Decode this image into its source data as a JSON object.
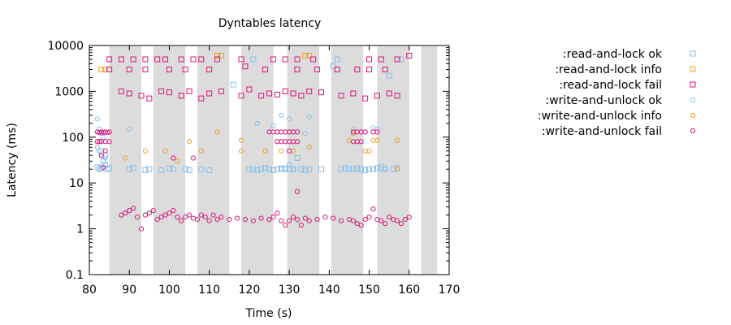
{
  "chart_data": {
    "type": "scatter",
    "title": "Dyntables latency",
    "xlabel": "Time (s)",
    "ylabel": "Latency (ms)",
    "xlim": [
      80,
      170
    ],
    "ylim": [
      0.1,
      10000
    ],
    "yscale": "log",
    "xticks": [
      80,
      90,
      100,
      110,
      120,
      130,
      140,
      150,
      160,
      170
    ],
    "yticks": [
      0.1,
      1,
      10,
      100,
      1000,
      10000
    ],
    "ytick_labels": [
      "0.1",
      "1",
      "10",
      "100",
      "1000",
      "10000"
    ],
    "grid": false,
    "legend_position": "right",
    "shaded_intervals": [
      [
        85,
        93
      ],
      [
        96,
        104
      ],
      [
        107,
        115
      ],
      [
        118,
        126
      ],
      [
        129.5,
        137.5
      ],
      [
        140.5,
        148.5
      ],
      [
        152,
        160
      ],
      [
        163,
        167
      ]
    ],
    "series": [
      {
        "name": ":read-and-lock ok",
        "marker": "square",
        "color": "#88c2ee",
        "points": [
          [
            82,
            22
          ],
          [
            82.5,
            20
          ],
          [
            83,
            21
          ],
          [
            83.5,
            30
          ],
          [
            84,
            25
          ],
          [
            84.5,
            20
          ],
          [
            85,
            21
          ],
          [
            83,
            50
          ],
          [
            84,
            40
          ],
          [
            90,
            20
          ],
          [
            91,
            21
          ],
          [
            94,
            19
          ],
          [
            95,
            20
          ],
          [
            98,
            19
          ],
          [
            100,
            21
          ],
          [
            101,
            20
          ],
          [
            104,
            20
          ],
          [
            105,
            19
          ],
          [
            108,
            20
          ],
          [
            110,
            19
          ],
          [
            113,
            6000
          ],
          [
            116,
            1400
          ],
          [
            118,
            5000
          ],
          [
            121,
            5000
          ],
          [
            120,
            20
          ],
          [
            121,
            20
          ],
          [
            122,
            19
          ],
          [
            123,
            20
          ],
          [
            124,
            21
          ],
          [
            125,
            20
          ],
          [
            126,
            19
          ],
          [
            127,
            20
          ],
          [
            128,
            21
          ],
          [
            129,
            20
          ],
          [
            130,
            20
          ],
          [
            131,
            20
          ],
          [
            132,
            35
          ],
          [
            133,
            20
          ],
          [
            134,
            19
          ],
          [
            135,
            20
          ],
          [
            138,
            20
          ],
          [
            141,
            3500
          ],
          [
            142,
            5000
          ],
          [
            143,
            20
          ],
          [
            144,
            21
          ],
          [
            145,
            20
          ],
          [
            146,
            20
          ],
          [
            147,
            21
          ],
          [
            148,
            20
          ],
          [
            149,
            19
          ],
          [
            150,
            20
          ],
          [
            151,
            20
          ],
          [
            152,
            21
          ],
          [
            153,
            22
          ],
          [
            154,
            20
          ],
          [
            155,
            2200
          ],
          [
            156,
            20
          ],
          [
            157,
            21
          ],
          [
            158,
            5000
          ]
        ]
      },
      {
        "name": ":read-and-lock info",
        "marker": "square",
        "color": "#f0a020",
        "points": [
          [
            83,
            3000
          ],
          [
            84,
            3000
          ],
          [
            112,
            6000
          ],
          [
            113,
            6000
          ],
          [
            134,
            6000
          ],
          [
            135,
            6000
          ]
        ]
      },
      {
        "name": ":read-and-lock fail",
        "marker": "square",
        "color": "#e0157d",
        "points": [
          [
            85,
            5000
          ],
          [
            88,
            5000
          ],
          [
            91,
            5000
          ],
          [
            94,
            5000
          ],
          [
            97,
            5000
          ],
          [
            99,
            5000
          ],
          [
            103,
            5000
          ],
          [
            106,
            5000
          ],
          [
            108,
            5000
          ],
          [
            112,
            5000
          ],
          [
            118,
            5000
          ],
          [
            126,
            5000
          ],
          [
            129,
            5000
          ],
          [
            132,
            5000
          ],
          [
            136,
            5000
          ],
          [
            150,
            5000
          ],
          [
            153,
            5000
          ],
          [
            157,
            5000
          ],
          [
            160,
            6000
          ],
          [
            85,
            3000
          ],
          [
            90,
            3000
          ],
          [
            94,
            3000
          ],
          [
            100,
            3000
          ],
          [
            104,
            3000
          ],
          [
            110,
            3000
          ],
          [
            119,
            3500
          ],
          [
            124,
            3000
          ],
          [
            132,
            3000
          ],
          [
            137,
            3000
          ],
          [
            142,
            3000
          ],
          [
            147,
            3000
          ],
          [
            150,
            3000
          ],
          [
            154,
            3000
          ],
          [
            88,
            1000
          ],
          [
            90,
            900
          ],
          [
            93,
            800
          ],
          [
            95,
            700
          ],
          [
            98,
            1000
          ],
          [
            100,
            950
          ],
          [
            103,
            800
          ],
          [
            105,
            1000
          ],
          [
            108,
            700
          ],
          [
            110,
            900
          ],
          [
            113,
            1000
          ],
          [
            118,
            800
          ],
          [
            120,
            1100
          ],
          [
            123,
            800
          ],
          [
            125,
            900
          ],
          [
            127,
            850
          ],
          [
            129,
            1000
          ],
          [
            131,
            900
          ],
          [
            133,
            800
          ],
          [
            135,
            1000
          ],
          [
            138,
            950
          ],
          [
            143,
            800
          ],
          [
            146,
            900
          ],
          [
            149,
            700
          ],
          [
            152,
            800
          ],
          [
            155,
            900
          ],
          [
            157,
            800
          ]
        ]
      },
      {
        "name": ":write-and-unlock ok",
        "marker": "circle",
        "color": "#88c2ee",
        "points": [
          [
            82,
            250
          ],
          [
            82.5,
            150
          ],
          [
            83,
            120
          ],
          [
            83.5,
            100
          ],
          [
            84,
            80
          ],
          [
            82,
            60
          ],
          [
            82.5,
            50
          ],
          [
            83,
            40
          ],
          [
            84,
            35
          ],
          [
            90,
            150
          ],
          [
            122,
            200
          ],
          [
            126,
            180
          ],
          [
            128,
            300
          ],
          [
            130,
            250
          ],
          [
            131,
            20
          ],
          [
            132,
            130
          ],
          [
            134,
            120
          ],
          [
            135,
            280
          ],
          [
            128,
            20
          ],
          [
            129,
            21
          ],
          [
            130,
            25
          ],
          [
            146,
            150
          ],
          [
            151,
            160
          ],
          [
            152,
            150
          ],
          [
            153,
            20
          ],
          [
            154,
            21
          ]
        ]
      },
      {
        "name": ":write-and-unlock info",
        "marker": "circle",
        "color": "#f0a020",
        "points": [
          [
            89,
            35
          ],
          [
            94,
            50
          ],
          [
            99,
            50
          ],
          [
            102,
            30
          ],
          [
            105,
            80
          ],
          [
            108,
            50
          ],
          [
            112,
            130
          ],
          [
            118,
            85
          ],
          [
            118,
            50
          ],
          [
            124,
            50
          ],
          [
            127,
            80
          ],
          [
            128,
            50
          ],
          [
            130,
            130
          ],
          [
            131,
            50
          ],
          [
            135,
            60
          ],
          [
            145,
            85
          ],
          [
            146,
            120
          ],
          [
            149,
            50
          ],
          [
            150,
            50
          ],
          [
            151,
            85
          ],
          [
            152,
            85
          ],
          [
            157,
            85
          ],
          [
            157,
            20
          ]
        ]
      },
      {
        "name": ":write-and-unlock fail",
        "marker": "circle",
        "color": "#e0157d",
        "points": [
          [
            82,
            130
          ],
          [
            82.5,
            125
          ],
          [
            83,
            130
          ],
          [
            83.5,
            125
          ],
          [
            84,
            130
          ],
          [
            84.5,
            125
          ],
          [
            85,
            130
          ],
          [
            82,
            80
          ],
          [
            82.5,
            80
          ],
          [
            83,
            80
          ],
          [
            84,
            80
          ],
          [
            85,
            80
          ],
          [
            83,
            40
          ],
          [
            83.5,
            22
          ],
          [
            84,
            50
          ],
          [
            101,
            35
          ],
          [
            106,
            35
          ],
          [
            125,
            130
          ],
          [
            126,
            130
          ],
          [
            127,
            130
          ],
          [
            128,
            130
          ],
          [
            129,
            130
          ],
          [
            130,
            130
          ],
          [
            131,
            130
          ],
          [
            132,
            130
          ],
          [
            127,
            80
          ],
          [
            128,
            80
          ],
          [
            129,
            80
          ],
          [
            130,
            80
          ],
          [
            131,
            80
          ],
          [
            132,
            80
          ],
          [
            130,
            50
          ],
          [
            132,
            6.5
          ],
          [
            146,
            130
          ],
          [
            147,
            130
          ],
          [
            148,
            130
          ],
          [
            149,
            130
          ],
          [
            146,
            80
          ],
          [
            147,
            80
          ],
          [
            148,
            80
          ],
          [
            151,
            130
          ],
          [
            152,
            130
          ],
          [
            88,
            2
          ],
          [
            89,
            2.2
          ],
          [
            90,
            2.5
          ],
          [
            91,
            2.8
          ],
          [
            92,
            1.8
          ],
          [
            93,
            1
          ],
          [
            94,
            2
          ],
          [
            95,
            2.2
          ],
          [
            96,
            2.5
          ],
          [
            97,
            1.6
          ],
          [
            98,
            1.8
          ],
          [
            99,
            2
          ],
          [
            100,
            2.2
          ],
          [
            101,
            2.5
          ],
          [
            102,
            1.8
          ],
          [
            103,
            1.5
          ],
          [
            104,
            1.8
          ],
          [
            105,
            2
          ],
          [
            106,
            1.7
          ],
          [
            107,
            1.6
          ],
          [
            108,
            2
          ],
          [
            109,
            1.8
          ],
          [
            110,
            1.5
          ],
          [
            111,
            2
          ],
          [
            112,
            1.6
          ],
          [
            113,
            1.8
          ],
          [
            115,
            1.6
          ],
          [
            117,
            1.7
          ],
          [
            119,
            1.6
          ],
          [
            121,
            1.5
          ],
          [
            123,
            1.7
          ],
          [
            125,
            1.6
          ],
          [
            126,
            1.8
          ],
          [
            127,
            2.2
          ],
          [
            128,
            1.5
          ],
          [
            129,
            1.2
          ],
          [
            130,
            1.5
          ],
          [
            131,
            1.8
          ],
          [
            132,
            1.6
          ],
          [
            133,
            1.2
          ],
          [
            134,
            1.7
          ],
          [
            135,
            1.5
          ],
          [
            137,
            1.6
          ],
          [
            139,
            1.8
          ],
          [
            141,
            1.7
          ],
          [
            143,
            1.5
          ],
          [
            145,
            1.6
          ],
          [
            146,
            1.5
          ],
          [
            147,
            1.3
          ],
          [
            148,
            1.2
          ],
          [
            149,
            1.6
          ],
          [
            150,
            1.8
          ],
          [
            151,
            2.7
          ],
          [
            152,
            1.6
          ],
          [
            153,
            1.5
          ],
          [
            154,
            1.3
          ],
          [
            155,
            1.8
          ],
          [
            156,
            1.6
          ],
          [
            157,
            1.5
          ],
          [
            158,
            1.3
          ],
          [
            159,
            1.6
          ],
          [
            160,
            1.8
          ]
        ]
      }
    ]
  }
}
